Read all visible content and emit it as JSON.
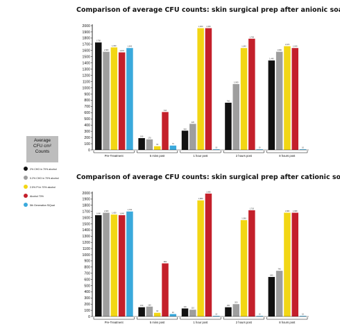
{
  "legend_title": [
    "Average",
    "CFU cm²",
    "Counts"
  ],
  "legend": [
    {
      "label": "2% CHG in 70% alcohol",
      "color": "#111111"
    },
    {
      "label": "0.2% CHG in 70% alcohol",
      "color": "#9e9e9e"
    },
    {
      "label": "2.5% PI in 70% alcohol",
      "color": "#f2d614"
    },
    {
      "label": "Alcohol 70%",
      "color": "#c4202b"
    },
    {
      "label": "5th Generation SiQuat",
      "color": "#3aa9dc"
    }
  ],
  "chart_data": [
    {
      "type": "bar",
      "title": "Comparison of average CFU counts: skin surgical prep after anionic soap",
      "categories": [
        "Pre-Treatment",
        "5 mins post",
        "1 hour post",
        "2 hours post",
        "8 hours post"
      ],
      "yticks": [
        "0",
        "100",
        "200",
        "300",
        "400",
        "500",
        "600",
        "700",
        "800",
        "900",
        "1000",
        "1100",
        "1200",
        "1300",
        "1400",
        "1500",
        "1600",
        "1700",
        "1800",
        "1900",
        "2000"
      ],
      "ylim": [
        0,
        2000
      ],
      "series": [
        {
          "values": [
            1730,
            190,
            310,
            760,
            1440
          ],
          "labels": [
            "1,730",
            "190",
            "310",
            "760",
            "1,440"
          ]
        },
        {
          "values": [
            1580,
            170,
            420,
            1060,
            1580
          ],
          "labels": [
            "1,580",
            "170",
            "420",
            "1,060",
            "1,580"
          ]
        },
        {
          "values": [
            1650,
            60,
            1960,
            1640,
            1670
          ],
          "labels": [
            "1,650",
            "60",
            "1,960",
            "1,640",
            "1,670"
          ]
        },
        {
          "values": [
            1570,
            610,
            1960,
            1790,
            1640
          ],
          "labels": [
            "1,570",
            "610",
            "1,960",
            "1,790",
            "1,640"
          ]
        },
        {
          "values": [
            1640,
            70,
            10,
            10,
            10
          ],
          "labels": [
            "1,640",
            "70",
            "10",
            "10",
            "10"
          ]
        }
      ]
    },
    {
      "type": "bar",
      "title": "Comparison of average CFU counts: skin surgical prep after cationic soap",
      "categories": [
        "Pre-Treatment",
        "5 mins post",
        "1 hour post",
        "2 hours post",
        "8 hours post"
      ],
      "yticks": [
        "0",
        "100",
        "200",
        "300",
        "400",
        "500",
        "600",
        "700",
        "800",
        "900",
        "1000",
        "1100",
        "1200",
        "1300",
        "1400",
        "1500",
        "1600",
        "1700",
        "1800",
        "1900",
        "2000"
      ],
      "ylim": [
        0,
        2000
      ],
      "series": [
        {
          "values": [
            1640,
            150,
            130,
            150,
            640
          ],
          "labels": [
            "1,640",
            "150",
            "130",
            "150",
            "640"
          ]
        },
        {
          "values": [
            1680,
            160,
            110,
            200,
            740
          ],
          "labels": [
            "1,680",
            "160",
            "110",
            "200",
            "740"
          ]
        },
        {
          "values": [
            1650,
            60,
            1880,
            1560,
            1680
          ],
          "labels": [
            "1,650",
            "60",
            "1,880",
            "1,560",
            "1,680"
          ]
        },
        {
          "values": [
            1640,
            860,
            1990,
            1720,
            1680
          ],
          "labels": [
            "1,640",
            "860",
            "1,990",
            "1,720",
            "1,680"
          ]
        },
        {
          "values": [
            1700,
            40,
            10,
            10,
            10
          ],
          "labels": [
            "1,700",
            "40",
            "10",
            "10",
            "10"
          ]
        }
      ]
    }
  ]
}
